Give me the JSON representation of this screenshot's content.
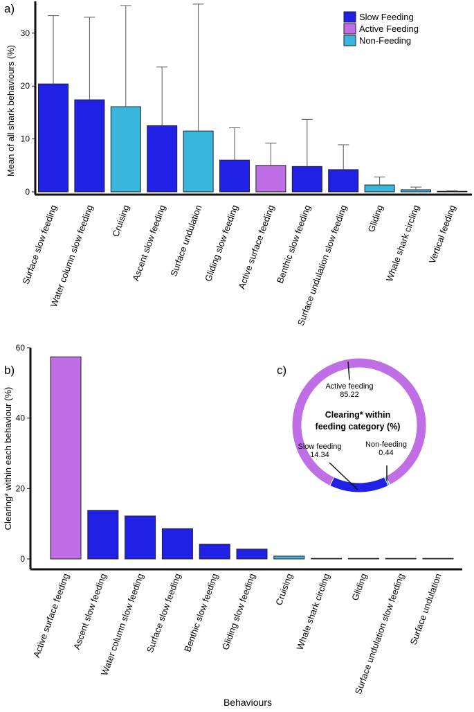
{
  "colors": {
    "slow_feeding": "#2121e6",
    "active_feeding": "#c06ee6",
    "non_feeding": "#38b6de",
    "axis": "#111111",
    "errorbar": "#555555"
  },
  "chart_data": [
    {
      "panel": "a)",
      "type": "bar",
      "ylabel": "Mean of all shark behaviours (%)",
      "ylim": [
        0,
        36
      ],
      "yticks": [
        0,
        10,
        20,
        30
      ],
      "categories": [
        "Surface slow feeding",
        "Water column slow feeding",
        "Cruising",
        "Ascent slow feeding",
        "Surface undulation",
        "Gliding slow feeding",
        "Active surface feeding",
        "Benthic slow feeding",
        "Surface undulation slow feeding",
        "Gliding",
        "Whale shark circling",
        "Vertical feeding"
      ],
      "values": [
        20.4,
        17.4,
        16.1,
        12.5,
        11.5,
        6.0,
        5.0,
        4.8,
        4.2,
        1.3,
        0.4,
        0.1
      ],
      "error_upper": [
        33.3,
        33.0,
        35.2,
        23.6,
        35.5,
        12.1,
        9.2,
        13.7,
        8.9,
        2.8,
        0.9,
        0.2
      ],
      "groups": [
        "slow",
        "slow",
        "non",
        "slow",
        "non",
        "slow",
        "active",
        "slow",
        "slow",
        "non",
        "non",
        "slow"
      ],
      "legend": {
        "placement": "top-right",
        "entries": [
          {
            "label": "Slow Feeding",
            "group": "slow"
          },
          {
            "label": "Active Feeding",
            "group": "active"
          },
          {
            "label": "Non-Feeding",
            "group": "non"
          }
        ]
      }
    },
    {
      "panel": "b)",
      "type": "bar",
      "ylabel": "Clearing* within each behaviour (%)",
      "xlabel": "Behaviours",
      "ylim": [
        0,
        60
      ],
      "yticks": [
        0,
        20,
        40,
        60
      ],
      "categories": [
        "Active surface feeding",
        "Ascent slow feeding",
        "Water column slow feeding",
        "Surface slow feeding",
        "Benthic slow feeding",
        "Gliding slow feeding",
        "Cruising",
        "Whale shark circling",
        "Gliding",
        "Surface undulation slow feeding",
        "Surface undulation"
      ],
      "values": [
        57.4,
        13.8,
        12.2,
        8.6,
        4.2,
        2.8,
        0.8,
        0.05,
        0.05,
        0.05,
        0.05
      ],
      "groups": [
        "active",
        "slow",
        "slow",
        "slow",
        "slow",
        "slow",
        "non",
        "non",
        "non",
        "slow",
        "non"
      ]
    },
    {
      "panel": "c)",
      "type": "pie",
      "title": "Clearing* within feeding category (%)",
      "slices": [
        {
          "label": "Active feeding",
          "value": 85.22,
          "group": "active"
        },
        {
          "label": "Slow feeding",
          "value": 14.34,
          "group": "slow"
        },
        {
          "label": "Non-feeding",
          "value": 0.44,
          "group": "non"
        }
      ]
    }
  ]
}
